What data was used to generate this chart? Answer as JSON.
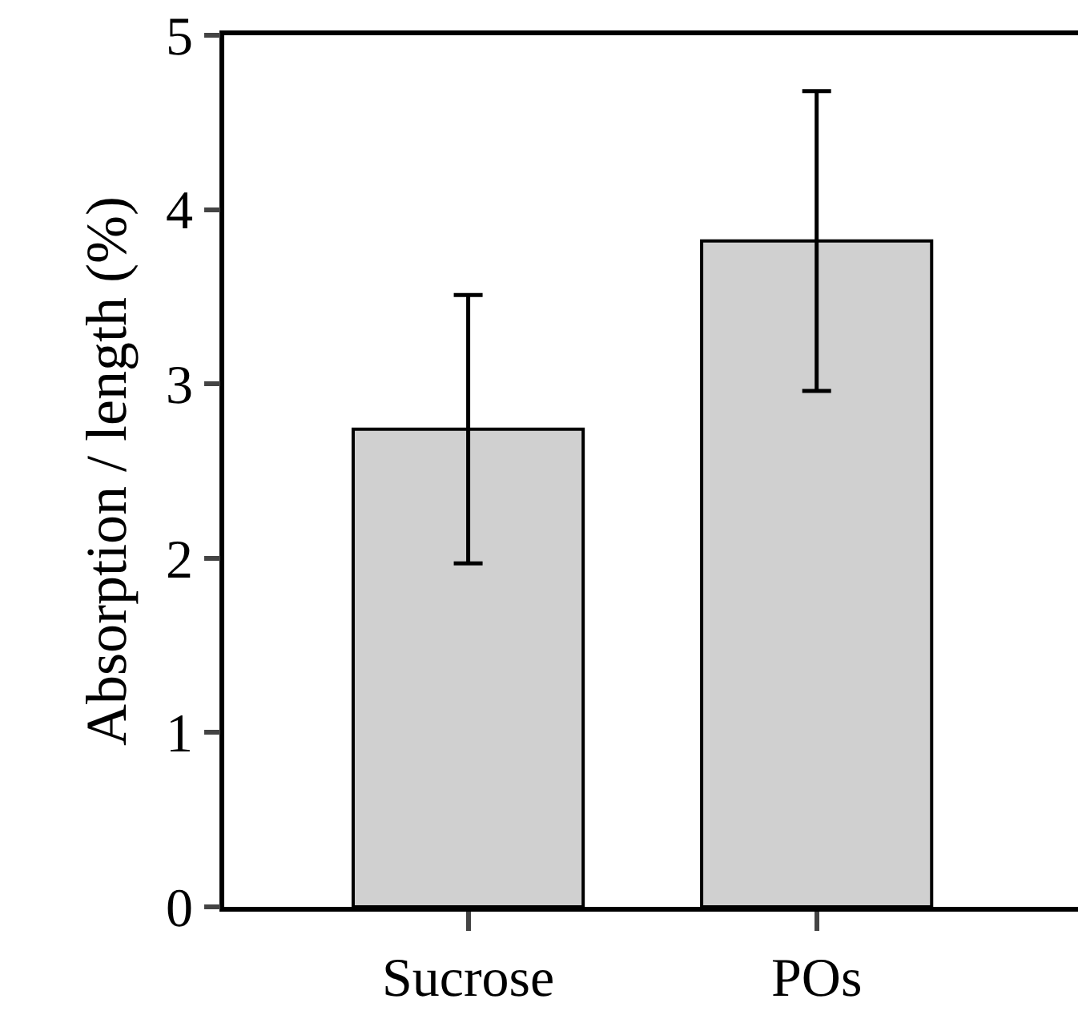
{
  "chart_data": {
    "type": "bar",
    "ylabel": "Absorption / length (%)",
    "categories": [
      "Sucrose",
      "POs"
    ],
    "values": [
      2.74,
      3.82
    ],
    "errors": [
      0.77,
      0.86
    ],
    "color": "#d0d0d0",
    "ylim": [
      0,
      5
    ],
    "yticks": [
      0,
      1,
      2,
      3,
      4,
      5
    ]
  }
}
